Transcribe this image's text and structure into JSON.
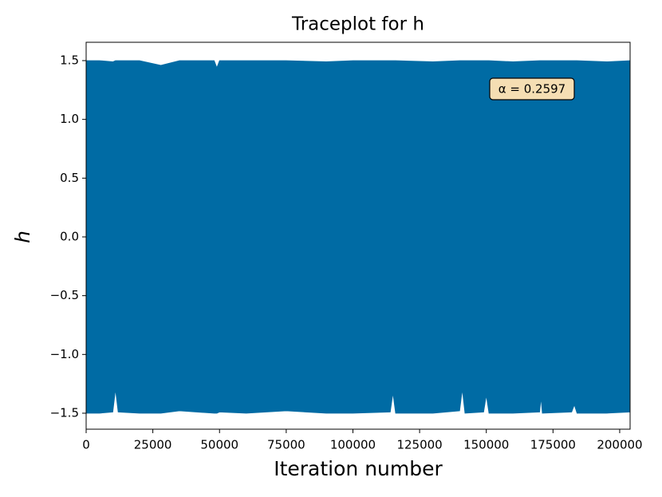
{
  "chart_data": {
    "type": "area",
    "title": "Traceplot for h",
    "xlabel": "Iteration number",
    "ylabel": "h",
    "annotation": "α = 0.2597",
    "annotation_color": "#f5deb3",
    "color": "#006ba4",
    "x": [
      0,
      5000,
      10000,
      11000,
      12000,
      20000,
      28000,
      35000,
      48000,
      49000,
      50000,
      60000,
      75000,
      90000,
      100000,
      114000,
      115000,
      116000,
      130000,
      140000,
      141000,
      142000,
      149000,
      150000,
      151000,
      160000,
      170000,
      170500,
      171000,
      182000,
      183000,
      184000,
      195000,
      203900
    ],
    "y_max": [
      1.5,
      1.5,
      1.49,
      1.5,
      1.5,
      1.5,
      1.46,
      1.5,
      1.5,
      1.44,
      1.5,
      1.5,
      1.5,
      1.49,
      1.5,
      1.5,
      1.5,
      1.5,
      1.49,
      1.5,
      1.5,
      1.5,
      1.5,
      1.5,
      1.5,
      1.49,
      1.5,
      1.5,
      1.5,
      1.5,
      1.5,
      1.5,
      1.49,
      1.5
    ],
    "y_min": [
      -1.5,
      -1.5,
      -1.49,
      -1.3,
      -1.49,
      -1.5,
      -1.5,
      -1.48,
      -1.5,
      -1.5,
      -1.49,
      -1.5,
      -1.48,
      -1.5,
      -1.5,
      -1.49,
      -1.33,
      -1.5,
      -1.5,
      -1.48,
      -1.3,
      -1.5,
      -1.49,
      -1.35,
      -1.5,
      -1.5,
      -1.49,
      -1.37,
      -1.5,
      -1.49,
      -1.43,
      -1.5,
      -1.5,
      -1.49
    ],
    "xlim": [
      0,
      203900
    ],
    "ylim": [
      -1.636,
      1.656
    ],
    "xticks": [
      0,
      25000,
      50000,
      75000,
      100000,
      125000,
      150000,
      175000,
      200000
    ],
    "yticks": [
      {
        "value": -1.5,
        "label": "−1.5"
      },
      {
        "value": -1.0,
        "label": "−1.0"
      },
      {
        "value": -0.5,
        "label": "−0.5"
      },
      {
        "value": 0,
        "label": "0.0"
      },
      {
        "value": 0.5,
        "label": "0.5"
      },
      {
        "value": 1.0,
        "label": "1.0"
      },
      {
        "value": 1.5,
        "label": "1.5"
      }
    ]
  }
}
